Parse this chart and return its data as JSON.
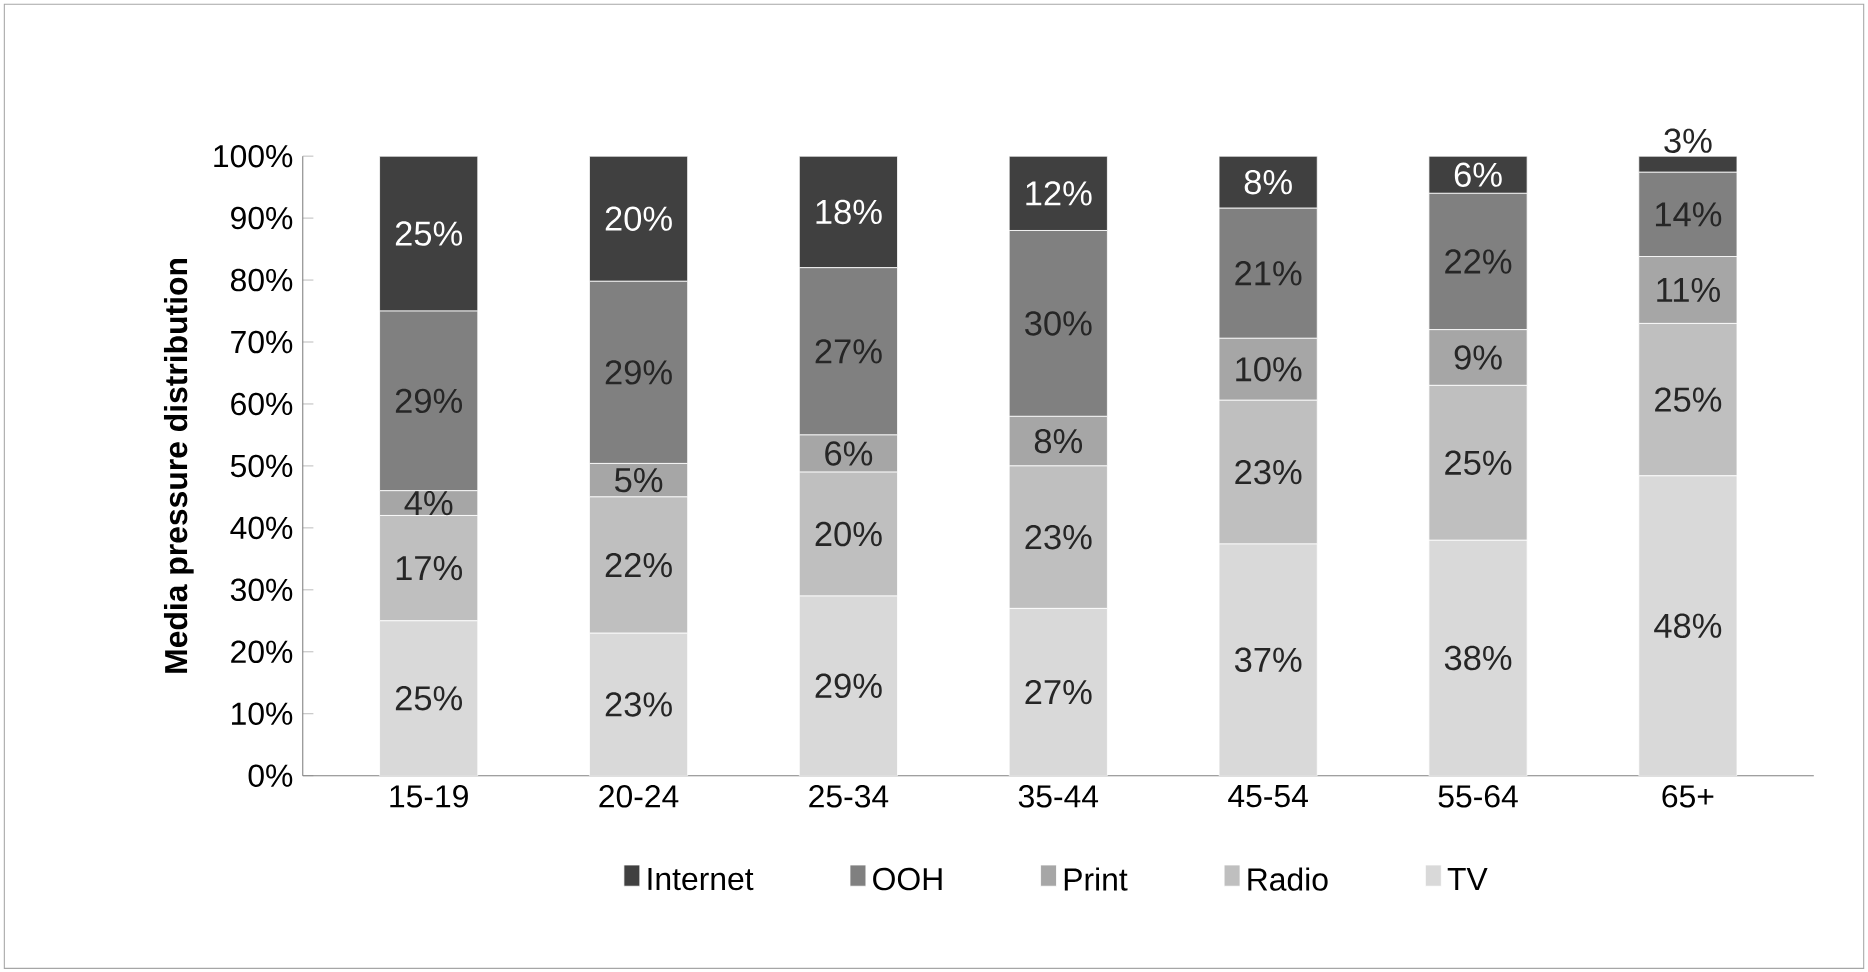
{
  "chart_data": {
    "type": "bar",
    "stacked": true,
    "ylabel": "Media pressure distribution",
    "categories": [
      "15-19",
      "20-24",
      "25-34",
      "35-44",
      "45-54",
      "55-64",
      "65+"
    ],
    "series": [
      {
        "name": "TV",
        "color": "#d9d9d9",
        "values": [
          25,
          23,
          29,
          27,
          37.4,
          38,
          48.4
        ],
        "value_labels": [
          "25%",
          "23%",
          "29%",
          "27%",
          "37%",
          "38%",
          "48%"
        ]
      },
      {
        "name": "Radio",
        "color": "#bfbfbf",
        "values": [
          17,
          22,
          20,
          23,
          23.2,
          25,
          24.6
        ],
        "value_labels": [
          "17%",
          "22%",
          "20%",
          "23%",
          "23%",
          "25%",
          "25%"
        ]
      },
      {
        "name": "Print",
        "color": "#a6a6a6",
        "values": [
          4,
          5.4,
          6,
          8,
          10,
          9,
          10.8
        ],
        "value_labels": [
          "4%",
          "5%",
          "6%",
          "8%",
          "10%",
          "9%",
          "11%"
        ]
      },
      {
        "name": "OOH",
        "color": "#808080",
        "values": [
          29,
          29.4,
          27,
          30,
          21,
          22,
          13.6
        ],
        "value_labels": [
          "29%",
          "29%",
          "27%",
          "30%",
          "21%",
          "22%",
          "14%"
        ]
      },
      {
        "name": "Internet",
        "color": "#404040",
        "values": [
          25,
          20.2,
          18,
          12,
          8.4,
          6,
          2.6
        ],
        "value_labels": [
          "25%",
          "20%",
          "18%",
          "12%",
          "8%",
          "6%",
          "3%"
        ]
      }
    ],
    "ylim": [
      0,
      100
    ],
    "yticks": [
      {
        "value": 0,
        "label": "0%"
      },
      {
        "value": 10,
        "label": "10%"
      },
      {
        "value": 20,
        "label": "20%"
      },
      {
        "value": 30,
        "label": "30%"
      },
      {
        "value": 40,
        "label": "40%"
      },
      {
        "value": 50,
        "label": "50%"
      },
      {
        "value": 60,
        "label": "60%"
      },
      {
        "value": 70,
        "label": "70%"
      },
      {
        "value": 80,
        "label": "80%"
      },
      {
        "value": 90,
        "label": "90%"
      },
      {
        "value": 100,
        "label": "100%"
      }
    ],
    "legend": "bottom",
    "grid": false
  }
}
